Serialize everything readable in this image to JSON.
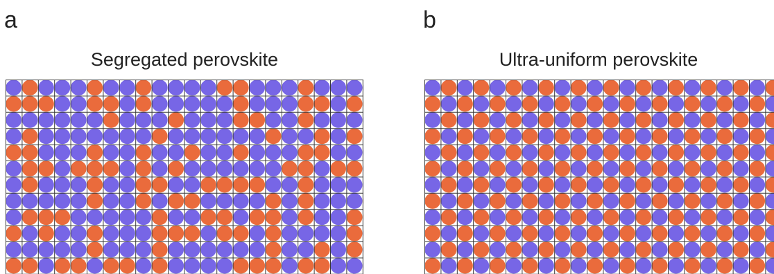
{
  "colors": {
    "a_site": "#7766e6",
    "b_site": "#ea6b3c",
    "grid": "#3a3a3a",
    "background": "#ffffff"
  },
  "panels": [
    {
      "letter": "a",
      "title": "Segregated perovskite",
      "rows": [
        "ABAAABAABAAAABBAAABAAAA",
        "BBBAABBABAAAAABAAABBABB",
        "AAAAAABAAABAAABBAABAAAA",
        "ABAAAAAAABAAAAAABAABABA",
        "BBAAABAABAABAABAAABBAAA",
        "ABBABBBABABAAAAAABBABBA",
        "ABAAABAABBAABBBBAABAAAA",
        "AAAAABAABABBAAAABABAAAB",
        "ABBBAAAAABAABBABBABAABB",
        "BABAABAAABBBABBABAAAABA",
        "AAAAABAAABAAAAAABAABABA",
        "BBABBABBABAAAABBBABBAAA"
      ]
    },
    {
      "letter": "b",
      "title": "Ultra-uniform perovskite",
      "rows": [
        "ABABABABABABABABABABABA",
        "BABABABABABABABABABABAB",
        "ABABABABABABABABABABABA",
        "BABABABABABABABABABABAB",
        "ABABABABABABABABABABABA",
        "BABABABABABABABABABABAB",
        "ABABABABABABABABABABABA",
        "BABABABABABABABABABABAB",
        "ABABABABABABABABABABABA",
        "BABABABABABABABABABABAB",
        "ABABABABABABABABABABABA",
        "BABABABABABABABABABABAB"
      ]
    }
  ]
}
